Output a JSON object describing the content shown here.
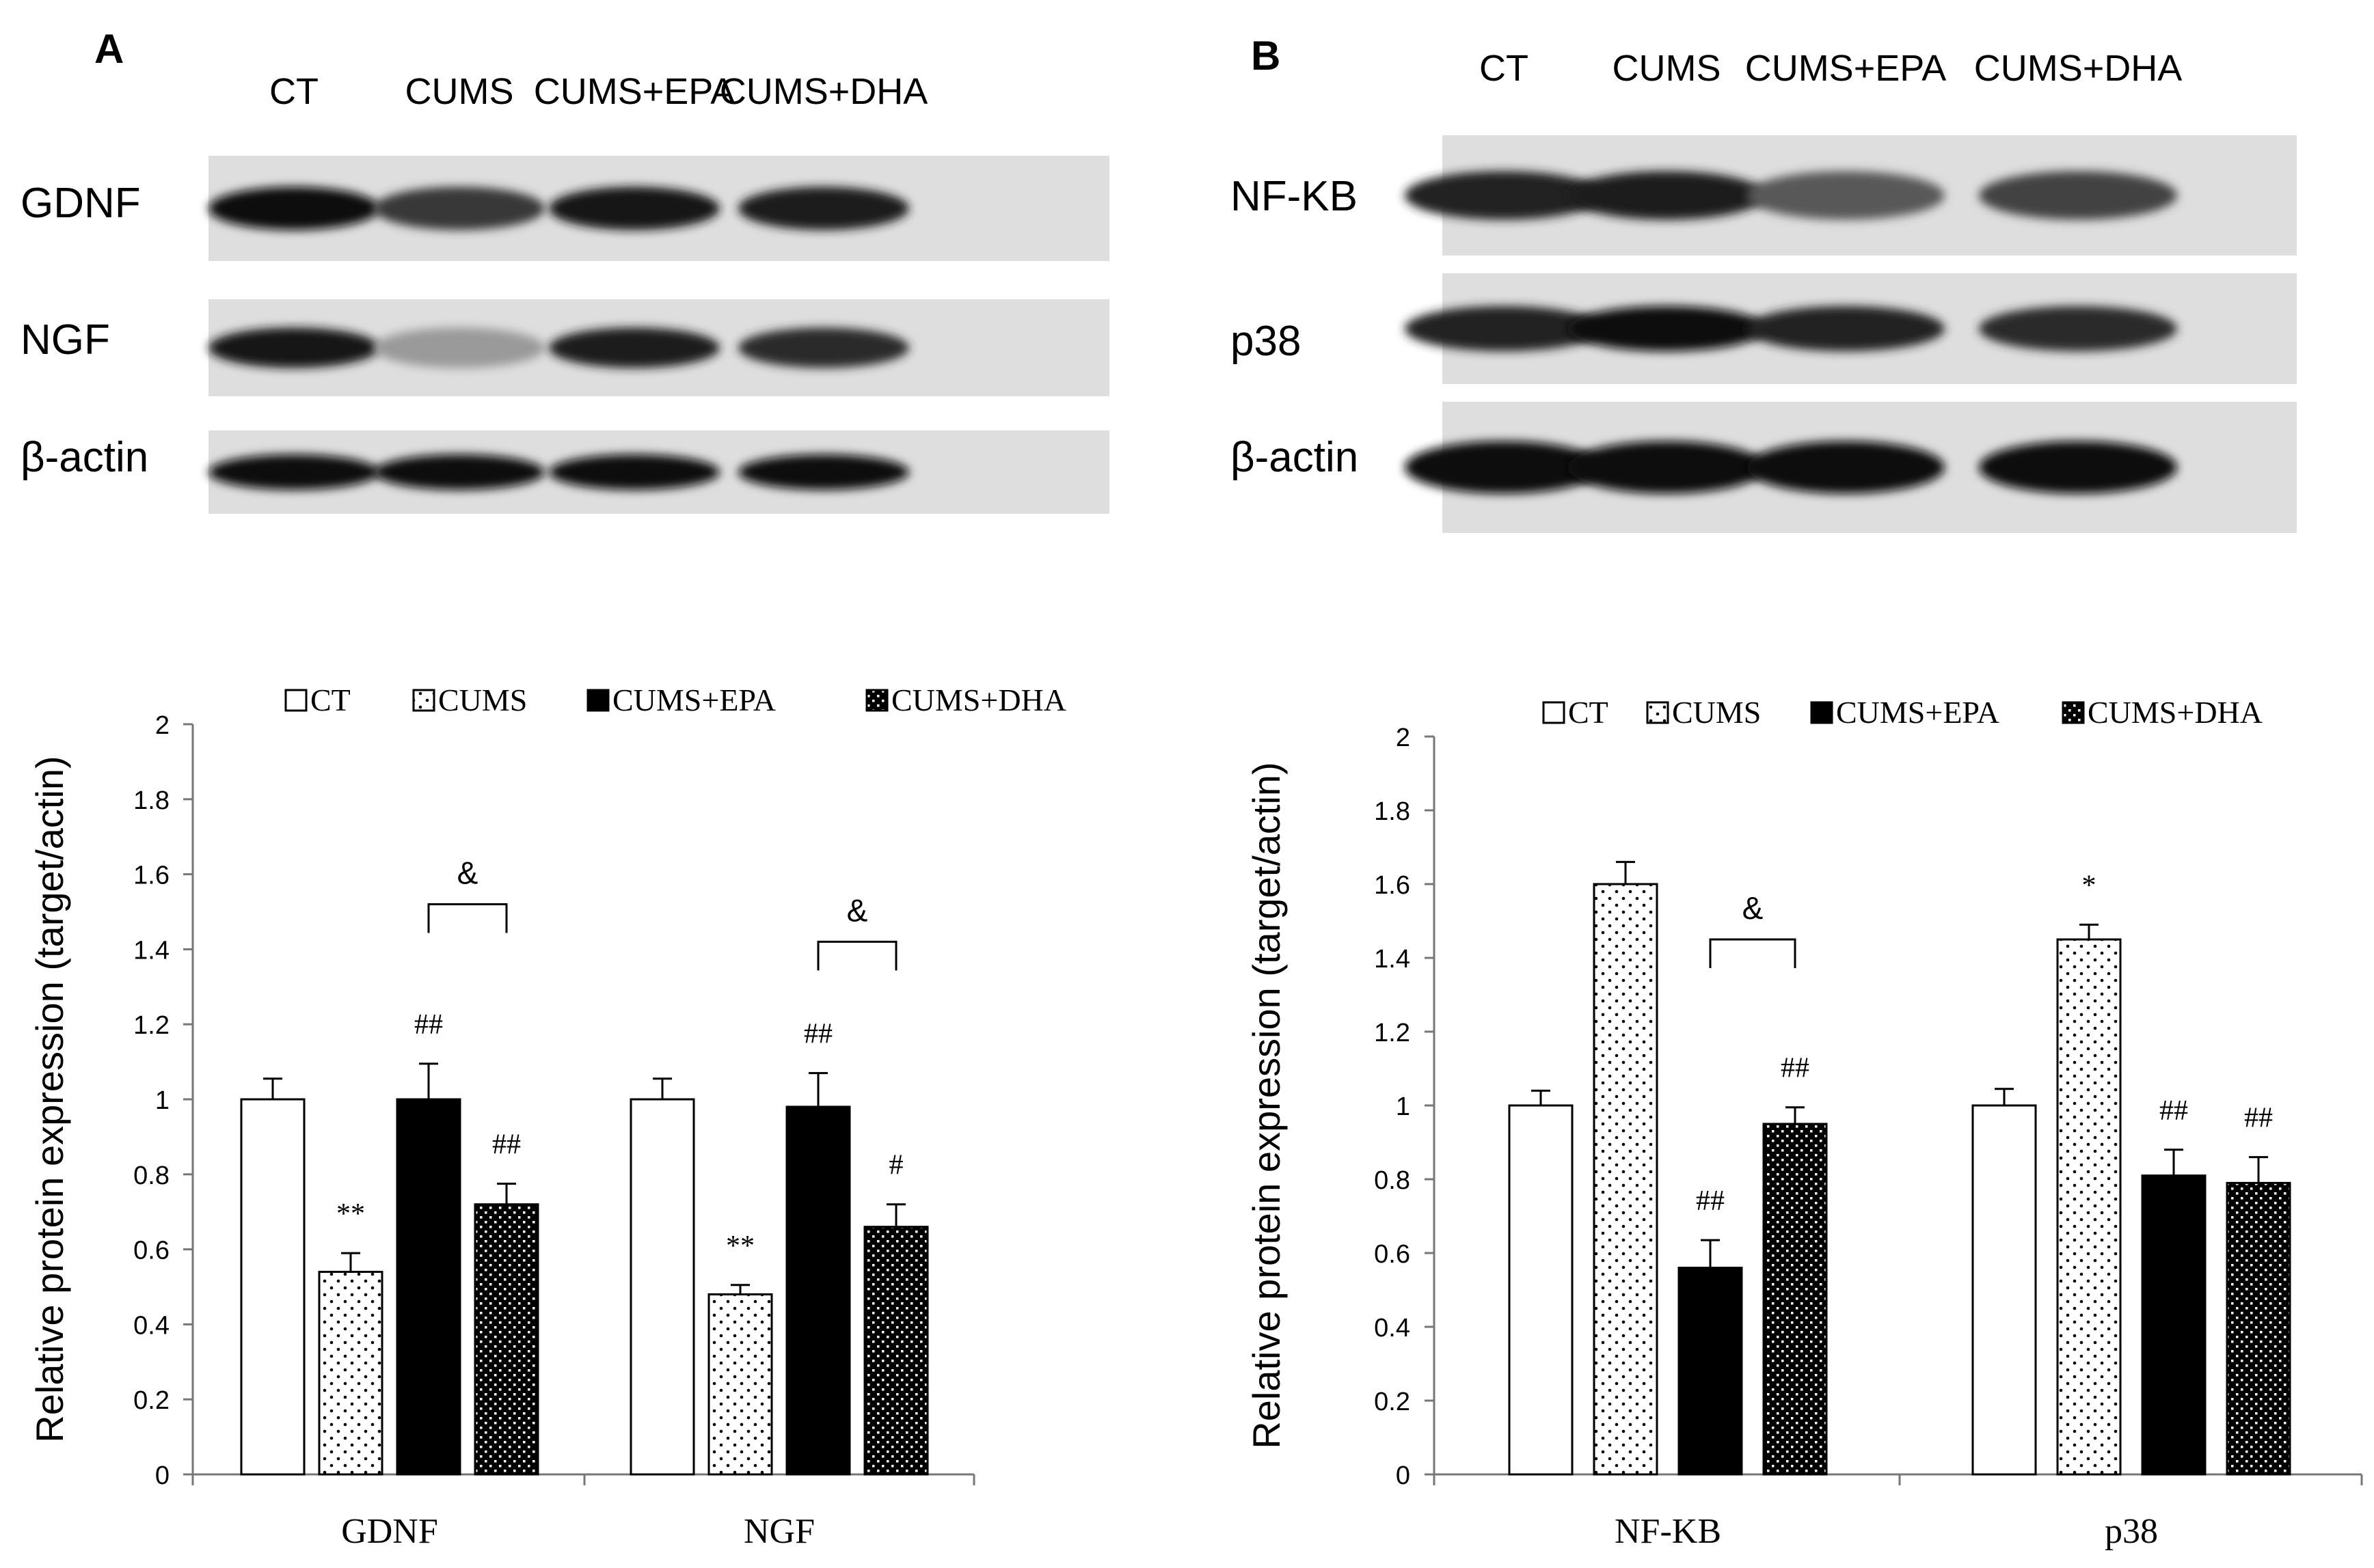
{
  "panels": [
    {
      "letter": "A",
      "blot": {
        "lanes": [
          "CT",
          "CUMS",
          "CUMS+EPA",
          "CUMS+DHA"
        ],
        "rows": [
          {
            "label": "GDNF",
            "intensity": [
              0.95,
              0.75,
              0.92,
              0.88
            ]
          },
          {
            "label": "NGF",
            "intensity": [
              0.9,
              0.3,
              0.88,
              0.8
            ]
          },
          {
            "label": "β-actin",
            "intensity": [
              0.97,
              0.97,
              0.97,
              0.97
            ]
          }
        ]
      }
    },
    {
      "letter": "B",
      "blot": {
        "lanes": [
          "CT",
          "CUMS",
          "CUMS+EPA",
          "CUMS+DHA"
        ],
        "rows": [
          {
            "label": "NF-KB",
            "intensity": [
              0.85,
              0.88,
              0.6,
              0.7
            ]
          },
          {
            "label": "p38",
            "intensity": [
              0.85,
              0.95,
              0.85,
              0.8
            ]
          },
          {
            "label": "β-actin",
            "intensity": [
              0.97,
              0.97,
              0.97,
              0.97
            ]
          }
        ]
      }
    }
  ],
  "chart_data": [
    {
      "type": "bar",
      "panel": "A",
      "categories": [
        "GDNF",
        "NGF"
      ],
      "series": [
        {
          "name": "CT",
          "values": [
            1.0,
            1.0
          ],
          "errors": [
            0.055,
            0.055
          ],
          "pattern": "white"
        },
        {
          "name": "CUMS",
          "values": [
            0.54,
            0.48
          ],
          "errors": [
            0.05,
            0.025
          ],
          "pattern": "sparse-dots"
        },
        {
          "name": "CUMS+EPA",
          "values": [
            1.0,
            0.98
          ],
          "errors": [
            0.095,
            0.09
          ],
          "pattern": "black"
        },
        {
          "name": "CUMS+DHA",
          "values": [
            0.72,
            0.66
          ],
          "errors": [
            0.055,
            0.06
          ],
          "pattern": "dense-dots"
        }
      ],
      "annotations": [
        {
          "text": "**",
          "category": 0,
          "series": 1
        },
        {
          "text": "##",
          "category": 0,
          "series": 2
        },
        {
          "text": "##",
          "category": 0,
          "series": 3
        },
        {
          "text": "**",
          "category": 1,
          "series": 1
        },
        {
          "text": "##",
          "category": 1,
          "series": 2
        },
        {
          "text": "#",
          "category": 1,
          "series": 3
        }
      ],
      "brackets": [
        {
          "text": "&",
          "category": 0,
          "from_series": 2,
          "to_series": 3,
          "y": 1.52
        },
        {
          "text": "&",
          "category": 1,
          "from_series": 2,
          "to_series": 3,
          "y": 1.42
        }
      ],
      "ylabel": "Relative protein expression (target/actin)",
      "ylim": [
        0,
        2
      ],
      "yticks": [
        "0",
        "0.2",
        "0.4",
        "0.6",
        "0.8",
        "1",
        "1.2",
        "1.4",
        "1.6",
        "1.8",
        "2"
      ],
      "legend": "top",
      "grid": false
    },
    {
      "type": "bar",
      "panel": "B",
      "categories": [
        "NF-KB",
        "p38"
      ],
      "series": [
        {
          "name": "CT",
          "values": [
            1.0,
            1.0
          ],
          "errors": [
            0.04,
            0.045
          ],
          "pattern": "white"
        },
        {
          "name": "CUMS",
          "values": [
            1.6,
            1.45
          ],
          "errors": [
            0.06,
            0.04
          ],
          "pattern": "sparse-dots"
        },
        {
          "name": "CUMS+EPA",
          "values": [
            0.56,
            0.81
          ],
          "errors": [
            0.075,
            0.07
          ],
          "pattern": "black"
        },
        {
          "name": "CUMS+DHA",
          "values": [
            0.95,
            0.79
          ],
          "errors": [
            0.045,
            0.07
          ],
          "pattern": "dense-dots"
        }
      ],
      "annotations": [
        {
          "text": "##",
          "category": 0,
          "series": 2
        },
        {
          "text": "##",
          "category": 0,
          "series": 3
        },
        {
          "text": "*",
          "category": 1,
          "series": 1
        },
        {
          "text": "##",
          "category": 1,
          "series": 2
        },
        {
          "text": "##",
          "category": 1,
          "series": 3
        }
      ],
      "brackets": [
        {
          "text": "&",
          "category": 0,
          "from_series": 2,
          "to_series": 3,
          "y": 1.45
        }
      ],
      "ylabel": "Relative protein expression (target/actin)",
      "ylim": [
        0,
        2
      ],
      "yticks": [
        "0",
        "0.2",
        "0.4",
        "0.6",
        "0.8",
        "1",
        "1.2",
        "1.4",
        "1.6",
        "1.8",
        "2"
      ],
      "legend": "top",
      "grid": false
    }
  ]
}
